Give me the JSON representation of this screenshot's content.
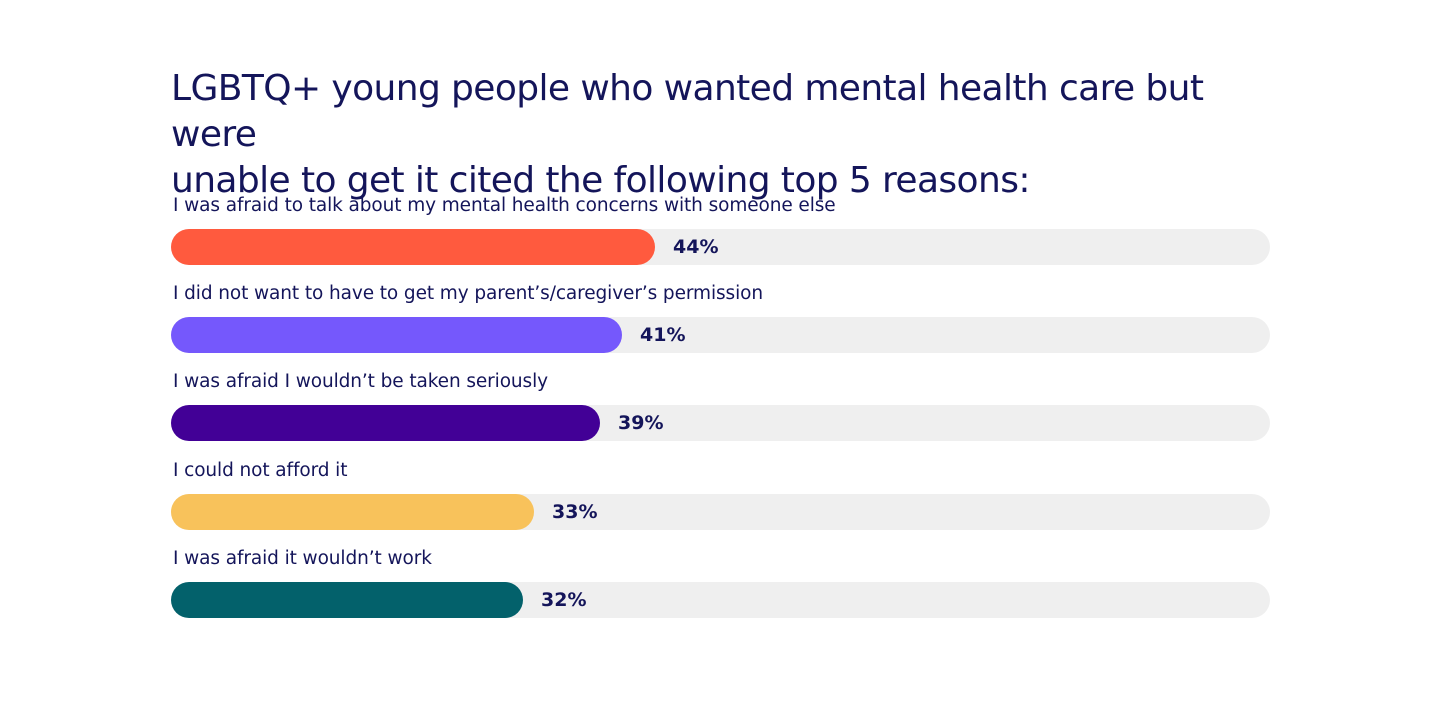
{
  "title_line1": "LGBTQ+ young people who wanted mental health care but were",
  "title_line2": "unable to get it cited the following top 5 reasons:",
  "chart_data": {
    "type": "bar",
    "orientation": "horizontal",
    "categories": [
      "I was afraid to talk about my mental health concerns with someone else",
      "I did not want to have to get my parent’s/caregiver’s permission",
      "I was afraid I wouldn’t be taken seriously",
      "I could not afford it",
      "I was afraid it wouldn’t work"
    ],
    "values": [
      44,
      41,
      39,
      33,
      32
    ],
    "value_labels": [
      "44%",
      "41%",
      "39%",
      "33%",
      "32%"
    ],
    "colors": [
      "#ff5a3e",
      "#7558fc",
      "#420096",
      "#f8c25b",
      "#03616b"
    ],
    "track_color": "#efefef",
    "xlim": [
      0,
      100
    ],
    "grid": false,
    "legend": "none"
  }
}
